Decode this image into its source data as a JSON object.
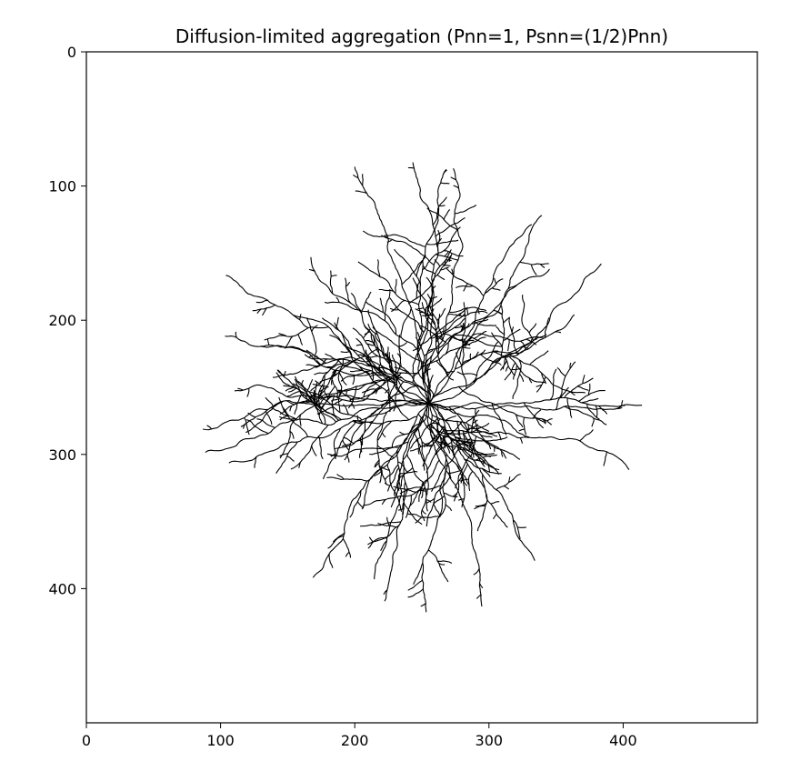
{
  "chart_data": {
    "type": "image",
    "title": "Diffusion-limited aggregation (Pnn=1, Psnn=(1/2)Pnn)",
    "xlabel": "",
    "ylabel": "",
    "xlim": [
      0,
      500
    ],
    "ylim": [
      500,
      0
    ],
    "x_ticks": [
      0,
      100,
      200,
      300,
      400
    ],
    "y_ticks": [
      0,
      100,
      200,
      300,
      400
    ],
    "x_tick_labels": [
      "0",
      "100",
      "200",
      "300",
      "400"
    ],
    "y_tick_labels": [
      "0",
      "100",
      "200",
      "300",
      "400"
    ],
    "cluster_center": [
      255,
      262
    ],
    "arm_tips": [
      [
        80,
        268
      ],
      [
        93,
        210
      ],
      [
        85,
        318
      ],
      [
        110,
        330
      ],
      [
        118,
        138
      ],
      [
        160,
        150
      ],
      [
        195,
        82
      ],
      [
        225,
        78
      ],
      [
        267,
        80
      ],
      [
        280,
        78
      ],
      [
        330,
        122
      ],
      [
        355,
        125
      ],
      [
        393,
        155
      ],
      [
        378,
        217
      ],
      [
        405,
        258
      ],
      [
        420,
        275
      ],
      [
        408,
        323
      ],
      [
        323,
        352
      ],
      [
        322,
        390
      ],
      [
        302,
        415
      ],
      [
        255,
        428
      ],
      [
        232,
        402
      ],
      [
        186,
        402
      ],
      [
        150,
        385
      ],
      [
        108,
        240
      ],
      [
        196,
        338
      ]
    ],
    "grid": false,
    "colors": {
      "aggregate": "#000000",
      "background": "#ffffff",
      "axes": "#000000"
    }
  }
}
